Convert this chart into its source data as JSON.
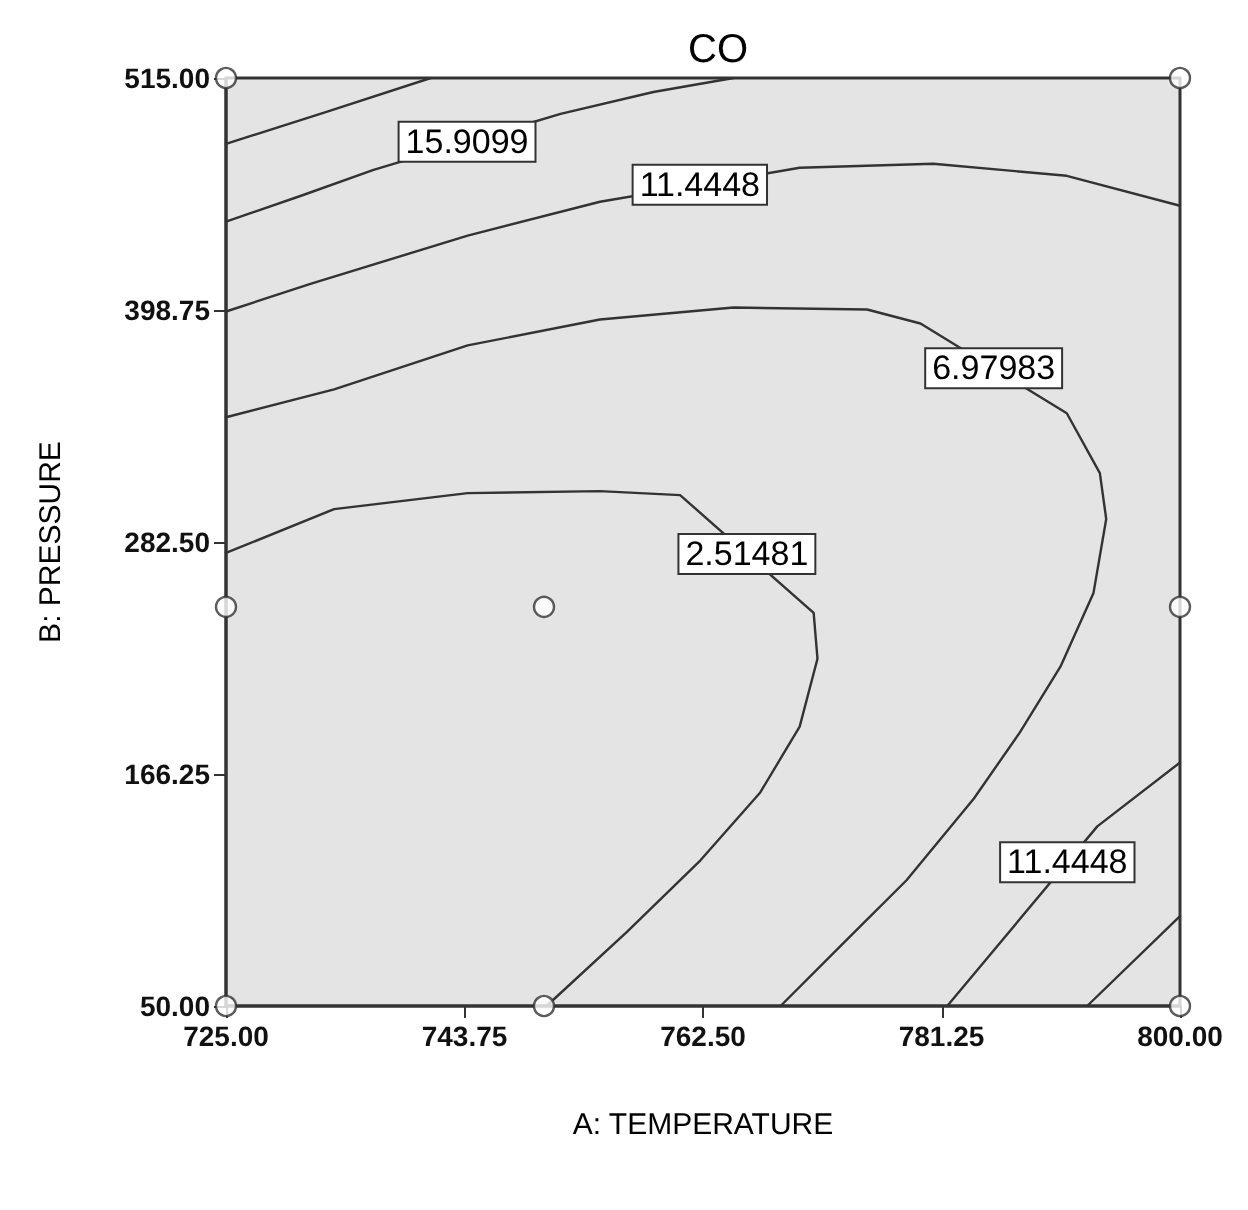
{
  "chart_data": {
    "type": "line",
    "title": "CO",
    "xlabel": "A: TEMPERATURE",
    "ylabel": "B: PRESSURE",
    "xlim": [
      725,
      800
    ],
    "ylim": [
      50,
      515
    ],
    "xticks": [
      {
        "value": 725,
        "label": "725.00"
      },
      {
        "value": 743.75,
        "label": "743.75"
      },
      {
        "value": 762.5,
        "label": "762.50"
      },
      {
        "value": 781.25,
        "label": "781.25"
      },
      {
        "value": 800,
        "label": "800.00"
      }
    ],
    "yticks": [
      {
        "value": 50,
        "label": "50.00"
      },
      {
        "value": 166.25,
        "label": "166.25"
      },
      {
        "value": 282.5,
        "label": "282.50"
      },
      {
        "value": 398.75,
        "label": "398.75"
      },
      {
        "value": 515,
        "label": "515.00"
      }
    ],
    "grid": false,
    "line_style": "solid",
    "marker": "none",
    "series": [
      {
        "color": "#333333",
        "x": [
          725,
          732.9,
          741.1
        ],
        "values": [
          482,
          498,
          515
        ]
      },
      {
        "color": "#333333",
        "x": [
          725,
          730.9,
          736.6,
          751.3,
          758.6,
          764.9
        ],
        "values": [
          443,
          456,
          469,
          497,
          508,
          515
        ]
      },
      {
        "color": "#333333",
        "x": [
          725,
          731.7,
          744,
          754.4,
          770.1,
          780.6,
          791.1,
          800,
          null,
          800,
          793.5,
          781.7
        ],
        "values": [
          398,
          412,
          436,
          453,
          470,
          472,
          466,
          451,
          null,
          172,
          140,
          50
        ]
      },
      {
        "color": "#333333",
        "x": [
          725,
          733.5,
          744,
          754.4,
          764.9,
          775.4,
          779.6,
          791.1,
          793.7,
          794.2,
          793.2,
          790.6,
          787.4,
          783.8,
          778.5,
          773.3,
          768.6
        ],
        "values": [
          345,
          359,
          381,
          394,
          400,
          399,
          392,
          347,
          317,
          294,
          257,
          220,
          187,
          154,
          113,
          80,
          50
        ]
      },
      {
        "color": "#333333",
        "x": [
          725,
          733.5,
          744,
          754.4,
          760.7,
          771.2,
          771.5,
          770.1,
          767,
          762.3,
          756.5,
          750.2
        ],
        "values": [
          277,
          299,
          307,
          308,
          306,
          247,
          224,
          190,
          157,
          123,
          87,
          50
        ]
      },
      {
        "color": "#333333",
        "x": [
          800,
          792.7
        ],
        "values": [
          95,
          50
        ]
      },
      {
        "type": "scatter",
        "color": "#ffffff",
        "marker": "circle",
        "x": [
          725,
          725,
          725,
          750,
          750,
          800,
          800,
          800
        ],
        "values": [
          50,
          250,
          515,
          50,
          250,
          50,
          250,
          515
        ]
      }
    ],
    "annotations": [
      {
        "text": "15.9099",
        "x": 743.95,
        "y": 483
      },
      {
        "text": "11.4448",
        "x": 762.25,
        "y": 461.5
      },
      {
        "text": "6.97983",
        "x": 785.35,
        "y": 369.5
      },
      {
        "text": "2.51481",
        "x": 765.95,
        "y": 276.5
      },
      {
        "text": "11.4448",
        "x": 791.14,
        "y": 122
      }
    ]
  }
}
